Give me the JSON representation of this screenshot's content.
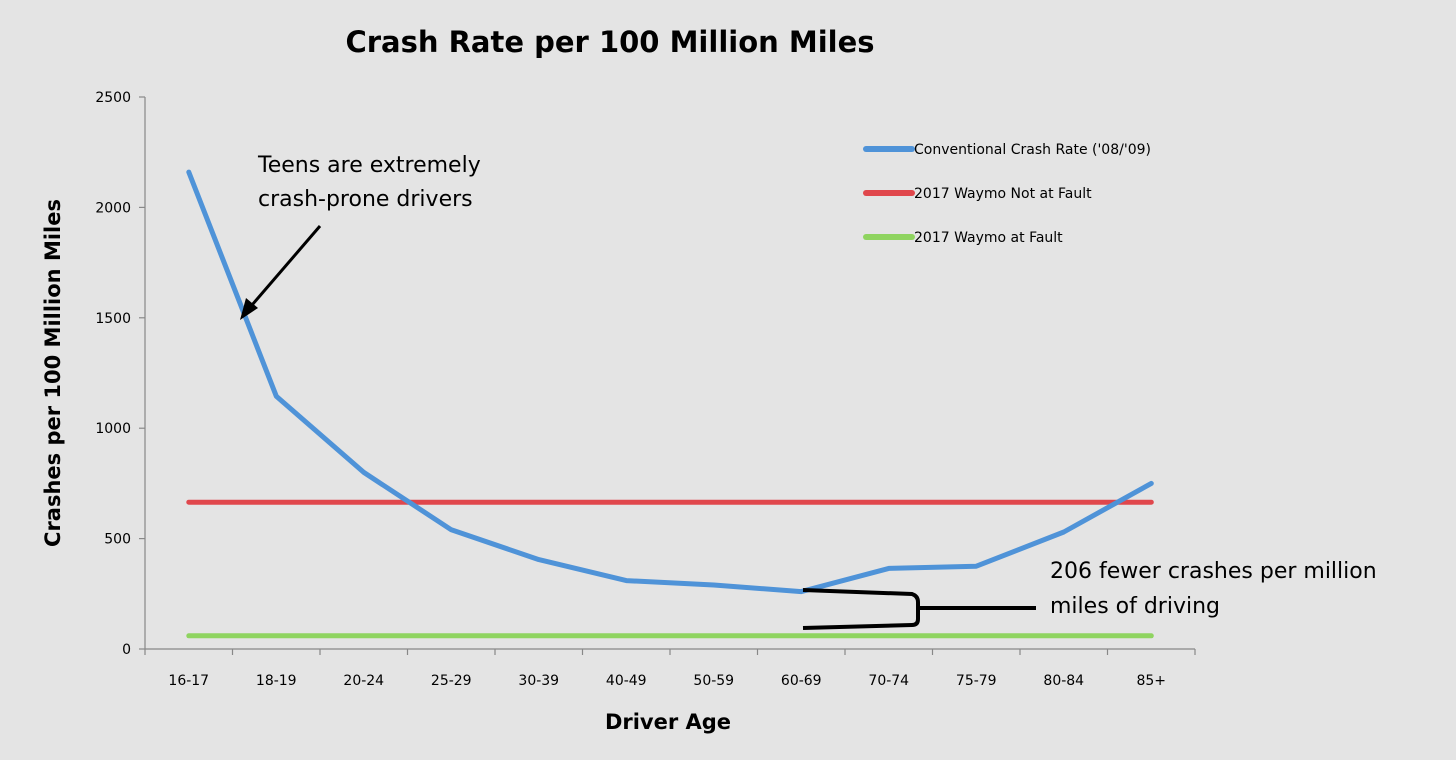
{
  "chart_data": {
    "type": "line",
    "title": "Crash Rate per 100 Million Miles",
    "xlabel": "Driver Age",
    "ylabel": "Crashes per 100 Million Miles",
    "ylim": [
      0,
      2500
    ],
    "yticks": [
      0,
      500,
      1000,
      1500,
      2000,
      2500
    ],
    "categories": [
      "16-17",
      "18-19",
      "20-24",
      "25-29",
      "30-39",
      "40-49",
      "50-59",
      "60-69",
      "70-74",
      "75-79",
      "80-84",
      "85+"
    ],
    "grid": false,
    "legend_position": "top-right",
    "series": [
      {
        "name": "Conventional Crash Rate ('08/'09)",
        "color": "#4f93d8",
        "values": [
          2160,
          1145,
          800,
          540,
          405,
          310,
          290,
          260,
          365,
          375,
          530,
          750
        ]
      },
      {
        "name": "2017 Waymo Not at Fault",
        "color": "#e0474c",
        "values": [
          665,
          665,
          665,
          665,
          665,
          665,
          665,
          665,
          665,
          665,
          665,
          665
        ]
      },
      {
        "name": "2017 Waymo at Fault",
        "color": "#8fd460",
        "values": [
          60,
          60,
          60,
          60,
          60,
          60,
          60,
          60,
          60,
          60,
          60,
          60
        ]
      }
    ],
    "annotations": [
      {
        "lines": [
          "Teens are extremely",
          "crash-prone drivers"
        ]
      },
      {
        "lines": [
          "206 fewer crashes per million",
          "miles of driving"
        ]
      }
    ]
  }
}
